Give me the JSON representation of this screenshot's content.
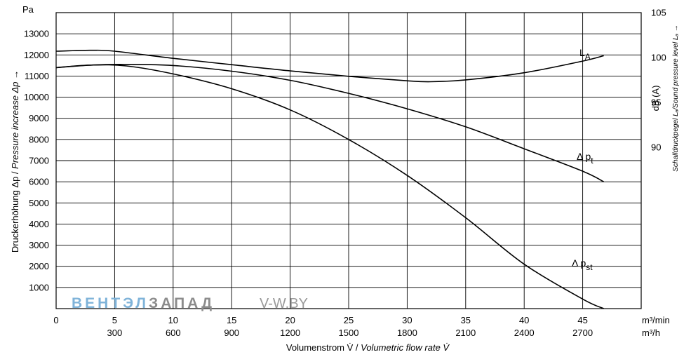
{
  "chart_data": {
    "type": "line",
    "left_axis": {
      "unit": "Pa",
      "label_de": "Druckerhöhung Δp /",
      "label_en": "Pressure increase  Δp →",
      "ticks": [
        1000,
        2000,
        3000,
        4000,
        5000,
        6000,
        7000,
        8000,
        9000,
        10000,
        11000,
        12000,
        13000
      ],
      "ylim": [
        0,
        14000
      ]
    },
    "right_axis": {
      "unit": "dB (A)",
      "label": "Schalldruckpegel Lₐ/Sound pressure level Lₐ →",
      "ticks": [
        90,
        95,
        100,
        105
      ],
      "ylim": [
        72,
        105
      ]
    },
    "x_axis": {
      "ticks_min": [
        0,
        5,
        10,
        15,
        20,
        25,
        30,
        35,
        40,
        45
      ],
      "ticks_h": [
        300,
        600,
        900,
        1200,
        1500,
        1800,
        2100,
        2400,
        2700
      ],
      "unit_min": "m³/min",
      "unit_h": "m³/h",
      "label_de": "Volumenstrom V̇ /",
      "label_en": "Volumetric flow rate V̇",
      "xlim": [
        0,
        50
      ]
    },
    "grid": true,
    "series": [
      {
        "name": "Δ pt",
        "label_main": "Δ p",
        "label_sub": "t",
        "axis": "left",
        "x": [
          0,
          3,
          6,
          10,
          15,
          20,
          25,
          30,
          35,
          40,
          45,
          46.8
        ],
        "y": [
          11400,
          11520,
          11550,
          11500,
          11230,
          10800,
          10180,
          9450,
          8600,
          7560,
          6500,
          6000
        ]
      },
      {
        "name": "Δ pst",
        "label_main": "Δ p",
        "label_sub": "st",
        "axis": "left",
        "x": [
          0,
          3,
          6,
          10,
          15,
          20,
          25,
          30,
          35,
          40,
          45,
          46.8
        ],
        "y": [
          11400,
          11520,
          11480,
          11100,
          10400,
          9400,
          8000,
          6300,
          4300,
          2100,
          450,
          0
        ]
      },
      {
        "name": "LA",
        "label_main": "L",
        "label_sub": "A",
        "axis": "right",
        "x": [
          0,
          3,
          5,
          10,
          15,
          20,
          25,
          30,
          32,
          35,
          40,
          45,
          46.8
        ],
        "y": [
          100.7,
          100.8,
          100.7,
          99.9,
          99.2,
          98.5,
          97.9,
          97.4,
          97.3,
          97.5,
          98.3,
          99.6,
          100.2
        ]
      }
    ]
  },
  "watermark": {
    "part1": "ВЕНТЭЛ",
    "part2": "ЗАПАД",
    "part3": "V-W.BY",
    "color1": "#7fb3d9",
    "color2": "#8c8c8c",
    "color3": "#9a9a9a"
  }
}
